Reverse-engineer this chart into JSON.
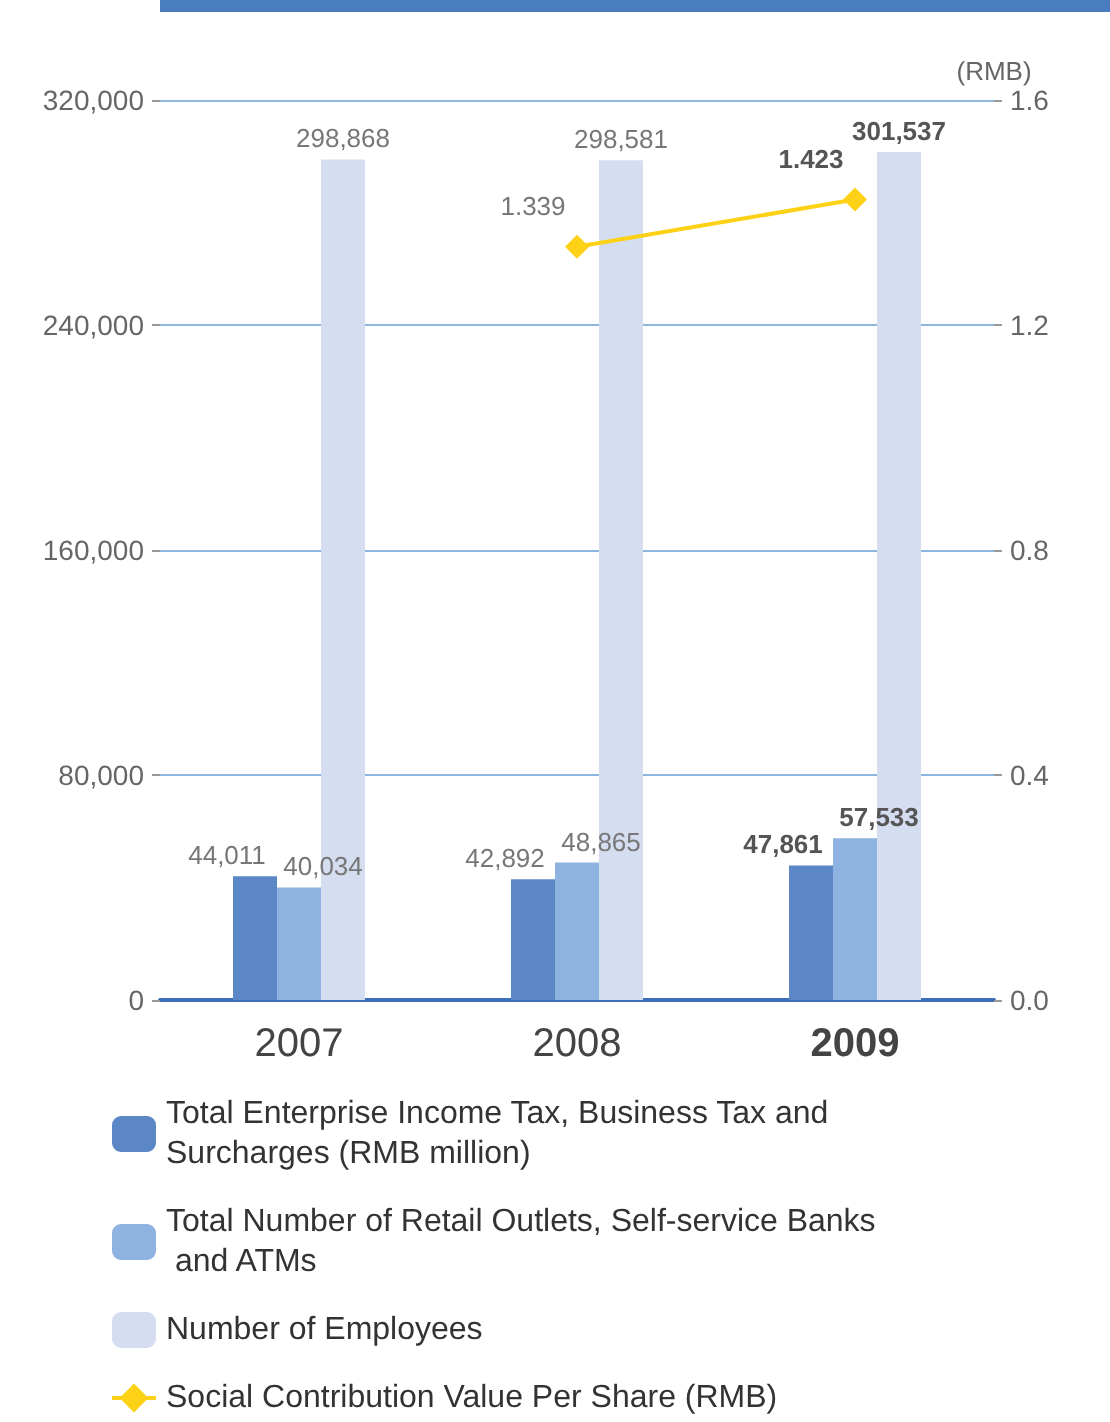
{
  "chart_data": {
    "type": "bar",
    "categories": [
      "2007",
      "2008",
      "2009"
    ],
    "series": [
      {
        "name": "Total Enterprise Income Tax, Business Tax and Surcharges (RMB million)",
        "color": "#5b87c6",
        "values": [
          44011,
          42892,
          47861
        ],
        "value_labels": [
          "44,011",
          "42,892",
          "47,861"
        ]
      },
      {
        "name": "Total Number of Retail Outlets, Self-service Banks and ATMs",
        "color": "#8fb3e0",
        "values": [
          40034,
          48865,
          57533
        ],
        "value_labels": [
          "40,034",
          "48,865",
          "57,533"
        ]
      },
      {
        "name": "Number of Employees",
        "color": "#d5def0",
        "values": [
          298868,
          298581,
          301537
        ],
        "value_labels": [
          "298,868",
          "298,581",
          "301,537"
        ]
      },
      {
        "name": "Social Contribution Value Per Share (RMB)",
        "type": "line",
        "axis": "y2",
        "color": "#fcd116",
        "values": [
          null,
          1.339,
          1.423
        ],
        "value_labels": [
          null,
          "1.339",
          "1.423"
        ]
      }
    ],
    "y2label": "(RMB)",
    "ylim": [
      0,
      320000
    ],
    "yticks": [
      {
        "value": 0,
        "label": "0"
      },
      {
        "value": 80000,
        "label": "80,000"
      },
      {
        "value": 160000,
        "label": "160,000"
      },
      {
        "value": 240000,
        "label": "240,000"
      },
      {
        "value": 320000,
        "label": "320,000"
      }
    ],
    "y2lim": [
      0,
      1.6
    ],
    "y2ticks": [
      {
        "value": 0,
        "label": "0.0"
      },
      {
        "value": 0.4,
        "label": "0.4"
      },
      {
        "value": 0.8,
        "label": "0.8"
      },
      {
        "value": 1.2,
        "label": "1.2"
      },
      {
        "value": 1.6,
        "label": "1.6"
      }
    ],
    "grid": "y",
    "legend": "bottom",
    "marker": "diamond",
    "data_labels": true
  }
}
